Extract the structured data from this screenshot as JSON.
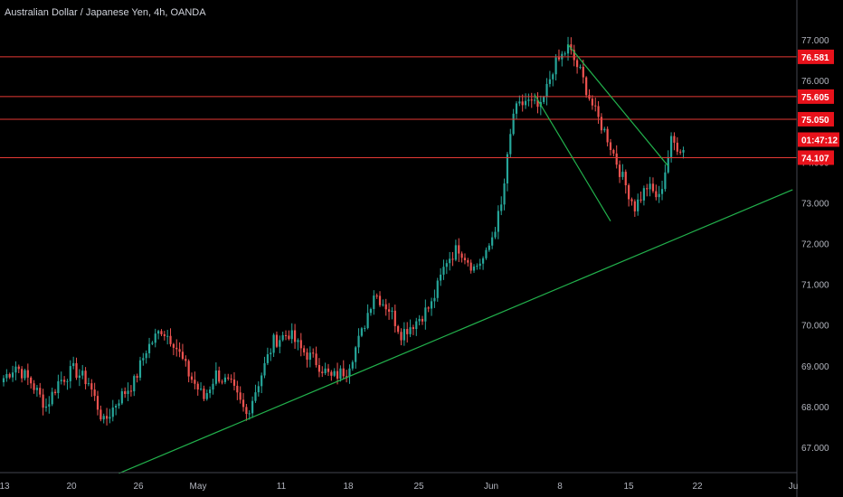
{
  "header": {
    "title": "Australian Dollar / Japanese Yen, 4h, OANDA"
  },
  "countdown": "01:47:12",
  "colors": {
    "background": "#000000",
    "up_candle": "#26a69a",
    "down_candle": "#ef5350",
    "level_line": "#e53935",
    "trend_line": "#22b14c",
    "axis_text": "#b2b5be",
    "tag_bg": "#e8121b"
  },
  "chart_data": {
    "type": "candlestick",
    "symbol": "AUDJPY",
    "timeframe": "4h",
    "ylim": [
      66.4,
      77.8
    ],
    "y_ticks": [
      "77.000",
      "76.000",
      "75.000",
      "74.000",
      "73.000",
      "72.000",
      "71.000",
      "70.000",
      "69.000",
      "68.000",
      "67.000"
    ],
    "x_ticks": [
      "13",
      "20",
      "26",
      "May",
      "11",
      "18",
      "25",
      "Jun",
      "8",
      "15",
      "22",
      "Ju"
    ],
    "horizontal_levels": [
      {
        "price": 76.581,
        "label": "76.581"
      },
      {
        "price": 75.605,
        "label": "75.605"
      },
      {
        "price": 75.05,
        "label": "75.050"
      },
      {
        "price": 74.107,
        "label": "74.107"
      }
    ],
    "close_path": [
      [
        0,
        68.7
      ],
      [
        4,
        69.0
      ],
      [
        9,
        68.6
      ],
      [
        14,
        68.0
      ],
      [
        18,
        68.6
      ],
      [
        23,
        68.9
      ],
      [
        28,
        68.6
      ],
      [
        33,
        67.6
      ],
      [
        38,
        68.2
      ],
      [
        43,
        68.6
      ],
      [
        47,
        69.4
      ],
      [
        52,
        69.9
      ],
      [
        56,
        69.6
      ],
      [
        61,
        68.8
      ],
      [
        66,
        68.2
      ],
      [
        70,
        68.8
      ],
      [
        75,
        68.5
      ],
      [
        80,
        67.8
      ],
      [
        84,
        68.6
      ],
      [
        89,
        69.6
      ],
      [
        94,
        69.8
      ],
      [
        98,
        69.4
      ],
      [
        103,
        69.1
      ],
      [
        108,
        68.7
      ],
      [
        113,
        68.9
      ],
      [
        118,
        69.8
      ],
      [
        122,
        70.8
      ],
      [
        127,
        70.4
      ],
      [
        131,
        69.8
      ],
      [
        136,
        70.1
      ],
      [
        141,
        70.5
      ],
      [
        146,
        71.6
      ],
      [
        150,
        71.9
      ],
      [
        155,
        71.4
      ],
      [
        159,
        71.7
      ],
      [
        164,
        72.9
      ],
      [
        168,
        75.2
      ],
      [
        172,
        75.5
      ],
      [
        177,
        75.3
      ],
      [
        181,
        76.3
      ],
      [
        186,
        76.8
      ],
      [
        190,
        76.2
      ],
      [
        195,
        75.2
      ],
      [
        199,
        74.6
      ],
      [
        204,
        73.6
      ],
      [
        208,
        72.9
      ],
      [
        212,
        73.4
      ],
      [
        216,
        73.1
      ],
      [
        220,
        74.5
      ],
      [
        224,
        74.3
      ]
    ]
  },
  "annotations": {
    "trendline_main": {
      "from": {
        "bar": 38,
        "price": 66.36
      },
      "to": {
        "bar": 260,
        "price": 73.32
      }
    },
    "channel_upper": {
      "from": {
        "bar": 186,
        "price": 76.88
      },
      "to": {
        "bar": 219,
        "price": 73.9
      }
    },
    "channel_lower": {
      "from": {
        "bar": 175,
        "price": 75.65
      },
      "to": {
        "bar": 200,
        "price": 72.55
      }
    }
  }
}
